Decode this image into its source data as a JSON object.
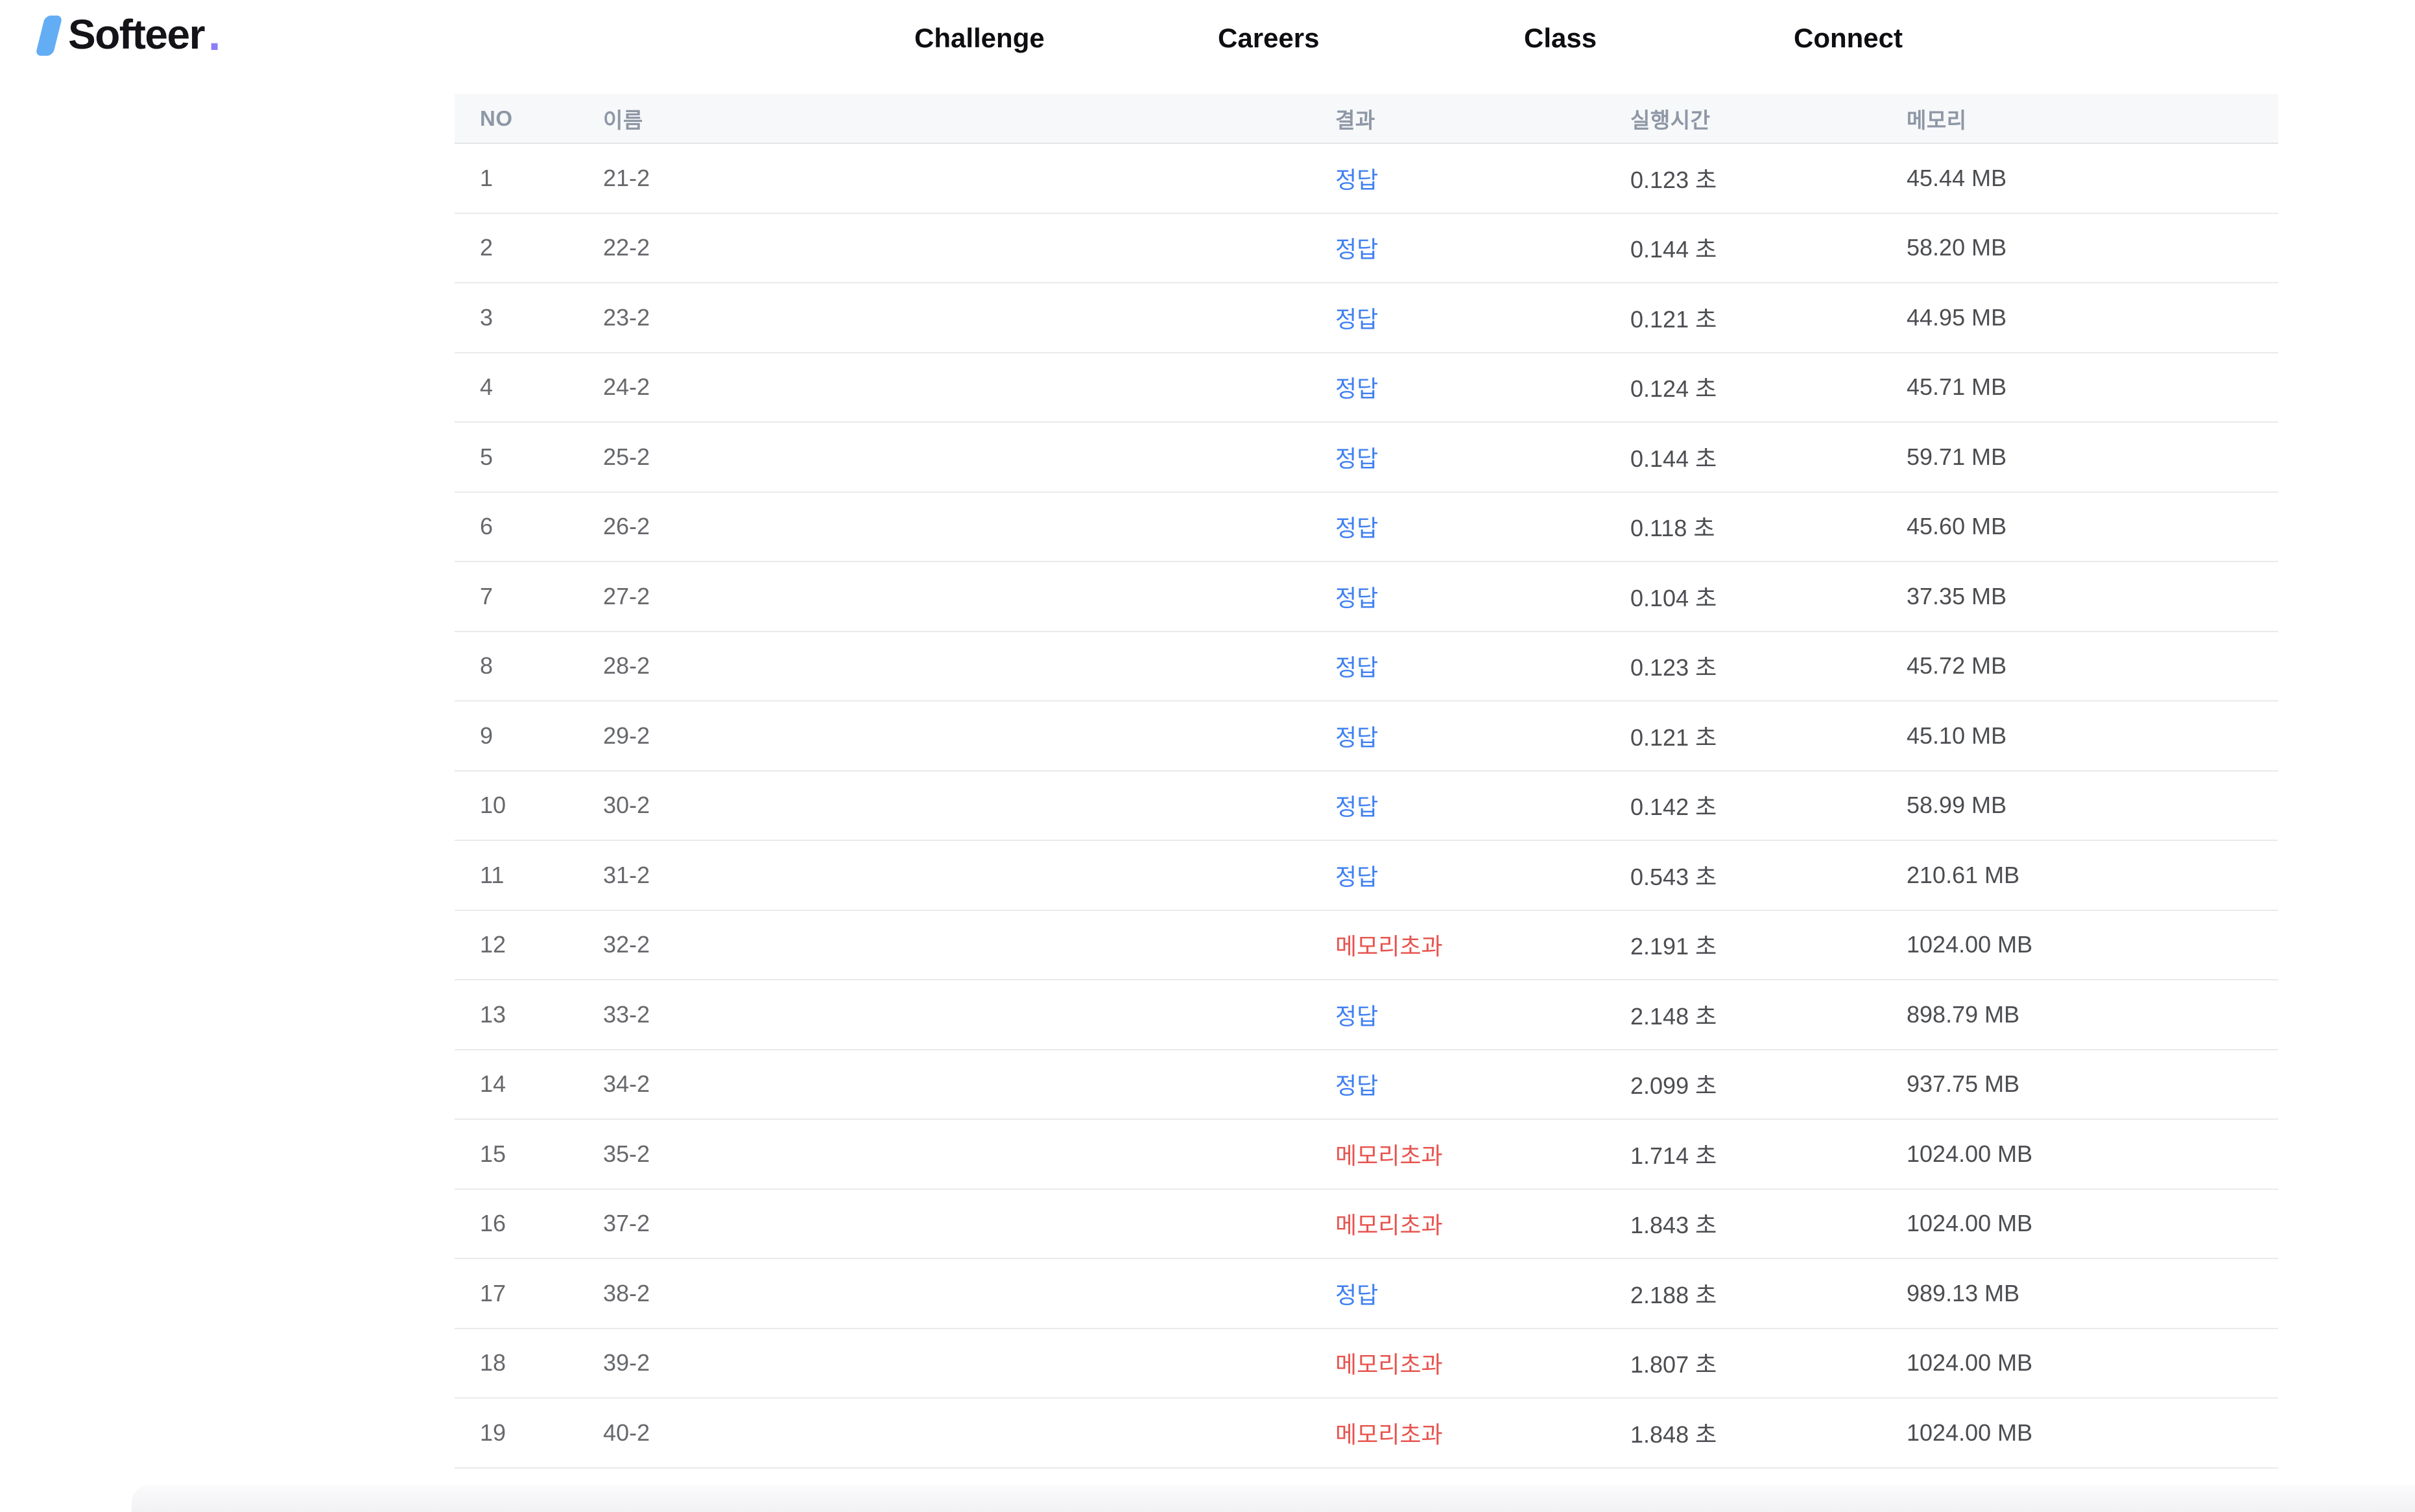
{
  "brand": {
    "slash_color": "#63adf5",
    "name": "Softeer",
    "dot": ".",
    "dot_color": "#8b7ef8"
  },
  "nav": {
    "challenge": "Challenge",
    "careers": "Careers",
    "class": "Class",
    "connect": "Connect"
  },
  "table": {
    "columns": [
      {
        "key": "no",
        "label": "NO"
      },
      {
        "key": "name",
        "label": "이름"
      },
      {
        "key": "result",
        "label": "결과"
      },
      {
        "key": "time",
        "label": "실행시간"
      },
      {
        "key": "memory",
        "label": "메모리"
      }
    ],
    "result_colors": {
      "pass": "#3f80f2",
      "fail": "#e8544f"
    },
    "result_labels": {
      "pass": "정답",
      "fail": "메모리초과"
    },
    "rows": [
      {
        "no": "1",
        "name": "21-2",
        "result": "정답",
        "result_type": "pass",
        "time": "0.123 초",
        "memory": "45.44 MB"
      },
      {
        "no": "2",
        "name": "22-2",
        "result": "정답",
        "result_type": "pass",
        "time": "0.144 초",
        "memory": "58.20 MB"
      },
      {
        "no": "3",
        "name": "23-2",
        "result": "정답",
        "result_type": "pass",
        "time": "0.121 초",
        "memory": "44.95 MB"
      },
      {
        "no": "4",
        "name": "24-2",
        "result": "정답",
        "result_type": "pass",
        "time": "0.124 초",
        "memory": "45.71 MB"
      },
      {
        "no": "5",
        "name": "25-2",
        "result": "정답",
        "result_type": "pass",
        "time": "0.144 초",
        "memory": "59.71 MB"
      },
      {
        "no": "6",
        "name": "26-2",
        "result": "정답",
        "result_type": "pass",
        "time": "0.118 초",
        "memory": "45.60 MB"
      },
      {
        "no": "7",
        "name": "27-2",
        "result": "정답",
        "result_type": "pass",
        "time": "0.104 초",
        "memory": "37.35 MB"
      },
      {
        "no": "8",
        "name": "28-2",
        "result": "정답",
        "result_type": "pass",
        "time": "0.123 초",
        "memory": "45.72 MB"
      },
      {
        "no": "9",
        "name": "29-2",
        "result": "정답",
        "result_type": "pass",
        "time": "0.121 초",
        "memory": "45.10 MB"
      },
      {
        "no": "10",
        "name": "30-2",
        "result": "정답",
        "result_type": "pass",
        "time": "0.142 초",
        "memory": "58.99 MB"
      },
      {
        "no": "11",
        "name": "31-2",
        "result": "정답",
        "result_type": "pass",
        "time": "0.543 초",
        "memory": "210.61 MB"
      },
      {
        "no": "12",
        "name": "32-2",
        "result": "메모리초과",
        "result_type": "fail",
        "time": "2.191 초",
        "memory": "1024.00 MB"
      },
      {
        "no": "13",
        "name": "33-2",
        "result": "정답",
        "result_type": "pass",
        "time": "2.148 초",
        "memory": "898.79 MB"
      },
      {
        "no": "14",
        "name": "34-2",
        "result": "정답",
        "result_type": "pass",
        "time": "2.099 초",
        "memory": "937.75 MB"
      },
      {
        "no": "15",
        "name": "35-2",
        "result": "메모리초과",
        "result_type": "fail",
        "time": "1.714 초",
        "memory": "1024.00 MB"
      },
      {
        "no": "16",
        "name": "37-2",
        "result": "메모리초과",
        "result_type": "fail",
        "time": "1.843 초",
        "memory": "1024.00 MB"
      },
      {
        "no": "17",
        "name": "38-2",
        "result": "정답",
        "result_type": "pass",
        "time": "2.188 초",
        "memory": "989.13 MB"
      },
      {
        "no": "18",
        "name": "39-2",
        "result": "메모리초과",
        "result_type": "fail",
        "time": "1.807 초",
        "memory": "1024.00 MB"
      },
      {
        "no": "19",
        "name": "40-2",
        "result": "메모리초과",
        "result_type": "fail",
        "time": "1.848 초",
        "memory": "1024.00 MB"
      }
    ]
  }
}
